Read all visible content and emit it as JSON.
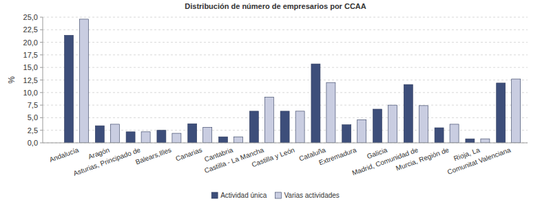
{
  "chart_data": {
    "type": "bar",
    "title": "Distribución de número de empresarios por CCAA",
    "y_label": "%",
    "categories": [
      "Andalucía",
      "Aragón",
      "Asturias, Principado de",
      "Balears,Illes",
      "Canarias",
      "Cantabria",
      "Castilla - La Mancha",
      "Castilla y León",
      "Cataluña",
      "Extremadura",
      "Galicia",
      "Madrid, Comunidad de",
      "Murcia, Región de",
      "Rioja, La",
      "Comunitat Valenciana"
    ],
    "series": [
      {
        "name": "Actividad única",
        "color": "#3d4e7a",
        "values": [
          21.4,
          3.4,
          2.2,
          2.5,
          3.8,
          1.2,
          6.3,
          6.3,
          15.7,
          3.6,
          6.7,
          11.6,
          3.0,
          0.8,
          11.9
        ]
      },
      {
        "name": "Varias actividades",
        "color": "#c9cde1",
        "values": [
          24.6,
          3.7,
          2.2,
          1.9,
          3.1,
          1.2,
          9.1,
          6.3,
          12.0,
          4.6,
          7.5,
          7.4,
          3.7,
          0.8,
          12.7
        ]
      }
    ],
    "ylim": [
      0,
      25
    ],
    "yticks": [
      {
        "value": 0,
        "label": "0,0"
      },
      {
        "value": 2.5,
        "label": "2,5"
      },
      {
        "value": 5,
        "label": "5,0"
      },
      {
        "value": 7.5,
        "label": "7,5"
      },
      {
        "value": 10,
        "label": "10,0"
      },
      {
        "value": 12.5,
        "label": "12,5"
      },
      {
        "value": 15,
        "label": "15,0"
      },
      {
        "value": 17.5,
        "label": "17,5"
      },
      {
        "value": 20,
        "label": "20,0"
      },
      {
        "value": 22.5,
        "label": "22,5"
      },
      {
        "value": 25,
        "label": "25,0"
      }
    ],
    "grid": true,
    "legend": "bottom"
  }
}
